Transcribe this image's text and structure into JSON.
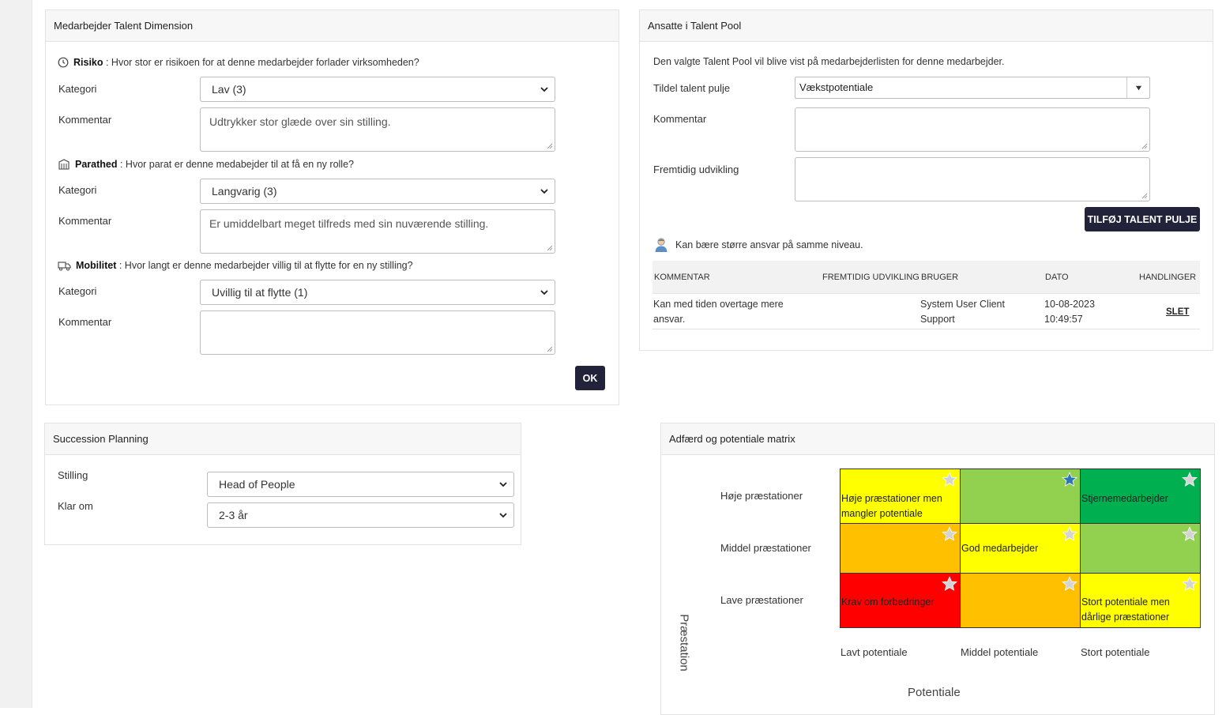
{
  "talent_dimension": {
    "title": "Medarbejder Talent Dimension",
    "risk": {
      "label": "Risiko",
      "question": " : Hvor stor er risikoen for at denne medarbejder forlader virksomheden?",
      "kategori_label": "Kategori",
      "kategori_value": "Lav (3)",
      "kommentar_label": "Kommentar",
      "kommentar_value": "Udtrykker stor glæde over sin stilling."
    },
    "readiness": {
      "label": "Parathed",
      "question": " : Hvor parat er denne medabejder til at få en ny rolle?",
      "kategori_label": "Kategori",
      "kategori_value": "Langvarig (3)",
      "kommentar_label": "Kommentar",
      "kommentar_value": "Er umiddelbart meget tilfreds med sin nuværende stilling."
    },
    "mobility": {
      "label": "Mobilitet",
      "question": " : Hvor langt er denne medarbejder villig til at flytte for en ny stilling?",
      "kategori_label": "Kategori",
      "kategori_value": "Uvillig til at flytte (1)",
      "kommentar_label": "Kommentar",
      "kommentar_value": ""
    },
    "ok_label": "OK"
  },
  "talent_pool": {
    "title": "Ansatte i Talent Pool",
    "info": "Den valgte Talent Pool vil blive vist på medarbejderlisten for denne medarbejder.",
    "assign_label": "Tildel talent pulje",
    "assign_value": "Vækstpotentiale",
    "kommentar_label": "Kommentar",
    "kommentar_value": "",
    "future_label": "Fremtidig udvikling",
    "future_value": "",
    "add_button": "TILFØJ TALENT PULJE",
    "note": "Kan bære større ansvar på samme niveau.",
    "table": {
      "headers": [
        "KOMMENTAR",
        "FREMTIDIG UDVIKLING",
        "BRUGER",
        "DATO",
        "HANDLINGER"
      ],
      "rows": [
        {
          "kommentar_line1": "Kan med tiden overtage mere",
          "kommentar_line2": "ansvar.",
          "fremtidig": "",
          "bruger_line1": "System User Client",
          "bruger_line2": "Support",
          "dato_line1": "10-08-2023",
          "dato_line2": "10:49:57",
          "action": "SLET"
        }
      ]
    }
  },
  "succession": {
    "title": "Succession Planning",
    "stilling_label": "Stilling",
    "stilling_value": "Head of People",
    "klar_label": "Klar om",
    "klar_value": "2-3 år"
  },
  "matrix": {
    "title": "Adfærd og potentiale matrix",
    "row_labels": [
      "Høje præstationer",
      "Middel præstationer",
      "Lave præstationer"
    ],
    "col_labels": [
      "Lavt potentiale",
      "Middel potentiale",
      "Stort potentiale"
    ],
    "y_axis": "Præstation",
    "x_axis": "Potentiale",
    "cells": [
      [
        {
          "line1": "Høje præstationer men",
          "line2": "mangler potentiale",
          "color": "#ffff00",
          "star": "grey"
        },
        {
          "line1": "",
          "line2": "",
          "color": "#92d050",
          "star": "blue"
        },
        {
          "line1": "Stjernemedarbejder",
          "line2": "",
          "color": "#00b050",
          "star": "grey"
        }
      ],
      [
        {
          "line1": "",
          "line2": "",
          "color": "#ffc000",
          "star": "grey"
        },
        {
          "line1": "God medarbejder",
          "line2": "",
          "color": "#ffff00",
          "star": "grey"
        },
        {
          "line1": "",
          "line2": "",
          "color": "#92d050",
          "star": "grey"
        }
      ],
      [
        {
          "line1": "Krav om forbedringer",
          "line2": "",
          "color": "#ff0000",
          "star": "grey"
        },
        {
          "line1": "",
          "line2": "",
          "color": "#ffc000",
          "star": "grey"
        },
        {
          "line1": "Stort potentiale men",
          "line2": "dårlige præstationer",
          "color": "#ffff00",
          "star": "grey"
        }
      ]
    ]
  }
}
